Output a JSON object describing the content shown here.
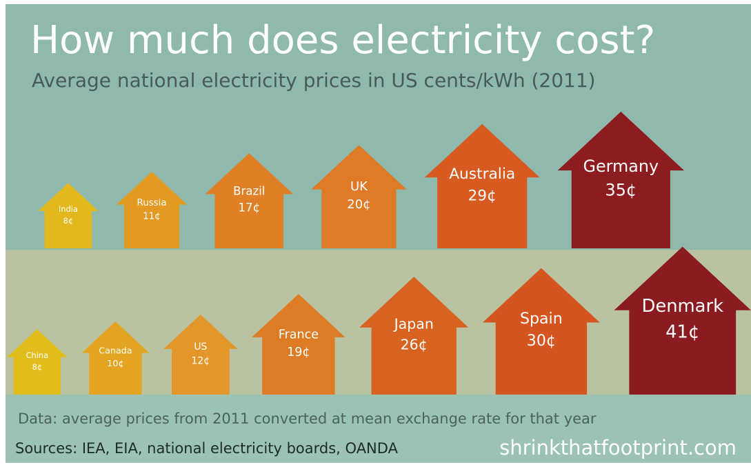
{
  "chart_data": {
    "type": "house",
    "title": "How much does electricity cost?",
    "subtitle": "Average national electricity prices in US cents/kWh (2011)",
    "rows": [
      {
        "categories": [
          "India",
          "Russia",
          "Brazil",
          "UK",
          "Australia",
          "Germany"
        ],
        "values": [
          8,
          11,
          17,
          20,
          29,
          35
        ],
        "value_labels": [
          "8¢",
          "11¢",
          "17¢",
          "20¢",
          "29¢",
          "35¢"
        ],
        "colors": [
          "#e3b81d",
          "#e39a23",
          "#df8026",
          "#df7a26",
          "#d75a20",
          "#8d1c20"
        ]
      },
      {
        "categories": [
          "China",
          "Canada",
          "US",
          "France",
          "Japan",
          "Spain",
          "Denmark"
        ],
        "values": [
          8,
          10,
          12,
          19,
          26,
          30,
          41
        ],
        "value_labels": [
          "8¢",
          "10¢",
          "12¢",
          "19¢",
          "26¢",
          "30¢",
          "41¢"
        ],
        "colors": [
          "#e2be1c",
          "#e3a421",
          "#e3962a",
          "#de7c26",
          "#d8621f",
          "#d55520",
          "#8a1b20"
        ]
      }
    ],
    "note": "Data:  average prices from 2011 converted at mean exchange rate for that year",
    "sources": "Sources:  IEA, EIA, national electricity boards, OANDA",
    "site": "shrinkthatfootprint.com"
  }
}
